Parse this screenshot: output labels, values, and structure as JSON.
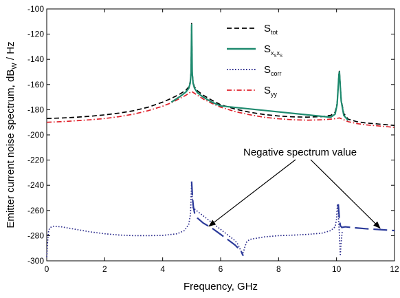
{
  "chart_data": {
    "type": "line",
    "xlabel": "Frequency, GHz",
    "ylabel": {
      "main": "Emitter current noise spectrum, dB",
      "sub": "W",
      "tail": " / Hz"
    },
    "xlim": [
      0,
      12
    ],
    "ylim": [
      -300,
      -100
    ],
    "xticks": [
      0,
      2,
      4,
      6,
      8,
      10,
      12
    ],
    "yticks": [
      -300,
      -280,
      -260,
      -240,
      -220,
      -200,
      -180,
      -160,
      -140,
      -120,
      -100
    ],
    "grid": false,
    "legend_position": "top-right",
    "series": [
      {
        "name": {
          "main": "S",
          "sub": "tot"
        },
        "color": "#000000",
        "dash": "7,4",
        "x": [
          0,
          0.5,
          1,
          1.5,
          2,
          2.5,
          3,
          3.5,
          4,
          4.3,
          4.6,
          4.8,
          4.9,
          4.95,
          4.98,
          5.0,
          5.02,
          5.05,
          5.1,
          5.2,
          5.4,
          5.7,
          6,
          6.5,
          7,
          7.5,
          8,
          8.5,
          9,
          9.5,
          9.8,
          9.95,
          10.02,
          10.06,
          10.08,
          10.1,
          10.12,
          10.16,
          10.25,
          10.4,
          10.7,
          11,
          11.5,
          12
        ],
        "y": [
          -187,
          -186.6,
          -186.0,
          -185.2,
          -184.1,
          -182.7,
          -180.8,
          -178.0,
          -174.0,
          -171.0,
          -167.5,
          -164.5,
          -162.0,
          -158.0,
          -150.0,
          -111.5,
          -150.0,
          -158.0,
          -162.0,
          -165.0,
          -168.5,
          -172.5,
          -176.0,
          -179.5,
          -182.0,
          -183.8,
          -185.0,
          -185.7,
          -185.9,
          -185.5,
          -184.5,
          -182.0,
          -175.0,
          -160.0,
          -152.0,
          -149.0,
          -157.0,
          -172.0,
          -183.0,
          -187.5,
          -189.5,
          -190.5,
          -191.5,
          -192.5
        ]
      },
      {
        "name": {
          "main": "S",
          "sub": "x",
          "sub2": "S",
          "mid": "x",
          "sub3": "S"
        },
        "color": "#1e8a6e",
        "dash": "",
        "x": [
          4.3,
          4.6,
          4.8,
          4.9,
          4.95,
          4.98,
          5.0,
          5.02,
          5.05,
          5.1,
          5.2,
          5.4,
          5.7,
          6.0,
          9.8,
          9.95,
          10.02,
          10.06,
          10.08,
          10.1,
          10.12,
          10.16,
          10.25,
          10.4
        ],
        "y": [
          -174.0,
          -169.5,
          -166.0,
          -163.0,
          -159.0,
          -151.0,
          -112.5,
          -151.0,
          -159.0,
          -163.0,
          -166.5,
          -170.0,
          -174.0,
          -177.0,
          -186.0,
          -183.5,
          -176.0,
          -161.0,
          -153.0,
          -150.0,
          -158.0,
          -173.0,
          -184.5,
          -188.5
        ]
      },
      {
        "name": {
          "main": "S",
          "sub": "corr"
        },
        "color": "#2b2b8c",
        "dash": "1.6,2.4",
        "x": [
          0.0,
          0.03,
          0.06,
          0.1,
          0.2,
          0.5,
          1.0,
          1.5,
          2.0,
          2.5,
          3.0,
          3.5,
          4.0,
          4.5,
          4.75,
          4.9,
          4.96,
          5.0,
          5.02,
          5.05,
          6.5,
          6.6,
          6.7,
          6.75,
          6.8,
          6.85,
          6.9,
          7.0,
          7.5,
          8.0,
          8.5,
          9.0,
          9.5,
          9.8,
          9.95,
          10.0,
          10.03,
          10.06,
          10.1,
          10.13,
          10.16,
          10.2
        ],
        "y": [
          -297.0,
          -285.0,
          -277.0,
          -274.0,
          -272.5,
          -273.0,
          -275.0,
          -277.0,
          -278.5,
          -279.5,
          -280.0,
          -280.0,
          -279.8,
          -278.5,
          -276.0,
          -271.0,
          -263.0,
          -237.0,
          -250.0,
          -258.0,
          -284.0,
          -287.0,
          -292.0,
          -295.0,
          -292.0,
          -288.0,
          -285.0,
          -283.0,
          -281.0,
          -280.0,
          -279.6,
          -279.0,
          -278.0,
          -276.0,
          -273.0,
          -267.0,
          -255.0,
          -262.0,
          -280.0,
          -295.0,
          -285.0,
          -276.0
        ]
      },
      {
        "name": {
          "main": "S",
          "sub": "yy"
        },
        "color": "#e0202a",
        "dash": "7,3,1.6,3",
        "x": [
          0,
          0.5,
          1,
          1.5,
          2,
          2.5,
          3,
          3.5,
          4,
          4.3,
          4.6,
          4.8,
          4.9,
          5.0,
          5.1,
          5.2,
          5.4,
          5.7,
          6,
          6.5,
          7,
          7.5,
          8,
          8.5,
          9,
          9.5,
          9.8,
          10.0,
          10.1,
          10.2,
          10.4,
          10.7,
          11,
          11.5,
          12
        ],
        "y": [
          -190.0,
          -189.5,
          -188.8,
          -188.0,
          -187.0,
          -185.5,
          -183.5,
          -180.8,
          -177.2,
          -174.5,
          -171.0,
          -168.5,
          -167.0,
          -165.5,
          -167.0,
          -168.5,
          -171.5,
          -175.0,
          -178.0,
          -181.5,
          -184.0,
          -186.0,
          -187.2,
          -188.0,
          -188.3,
          -188.0,
          -187.5,
          -187.0,
          -186.5,
          -187.5,
          -189.5,
          -191.0,
          -192.0,
          -193.0,
          -194.0
        ]
      },
      {
        "name": "",
        "color": "#2b3a9a",
        "dash": "20,7",
        "x": [
          5.0,
          5.03,
          5.06,
          5.1,
          5.2,
          5.4,
          5.7,
          6.0,
          6.3,
          6.5,
          6.7,
          6.78
        ],
        "y": [
          -237.0,
          -250.0,
          -257.0,
          -262.0,
          -266.0,
          -270.0,
          -274.0,
          -279.0,
          -284.0,
          -287.5,
          -292.0,
          -296.0
        ]
      },
      {
        "name": "",
        "color": "#2b3a9a",
        "dash": "20,7",
        "x": [
          10.06,
          10.08,
          10.1,
          10.13,
          10.18,
          10.3,
          10.6,
          11.0,
          11.5,
          12.0
        ],
        "y": [
          -255.0,
          -261.0,
          -267.0,
          -272.0,
          -273.5,
          -273.0,
          -273.7,
          -274.5,
          -275.2,
          -276.0
        ]
      }
    ],
    "annotations": [
      {
        "text": "Negative spectrum value",
        "arrows_to": [
          [
            5.6,
            -272.5
          ],
          [
            11.5,
            -274.0
          ]
        ]
      }
    ]
  }
}
